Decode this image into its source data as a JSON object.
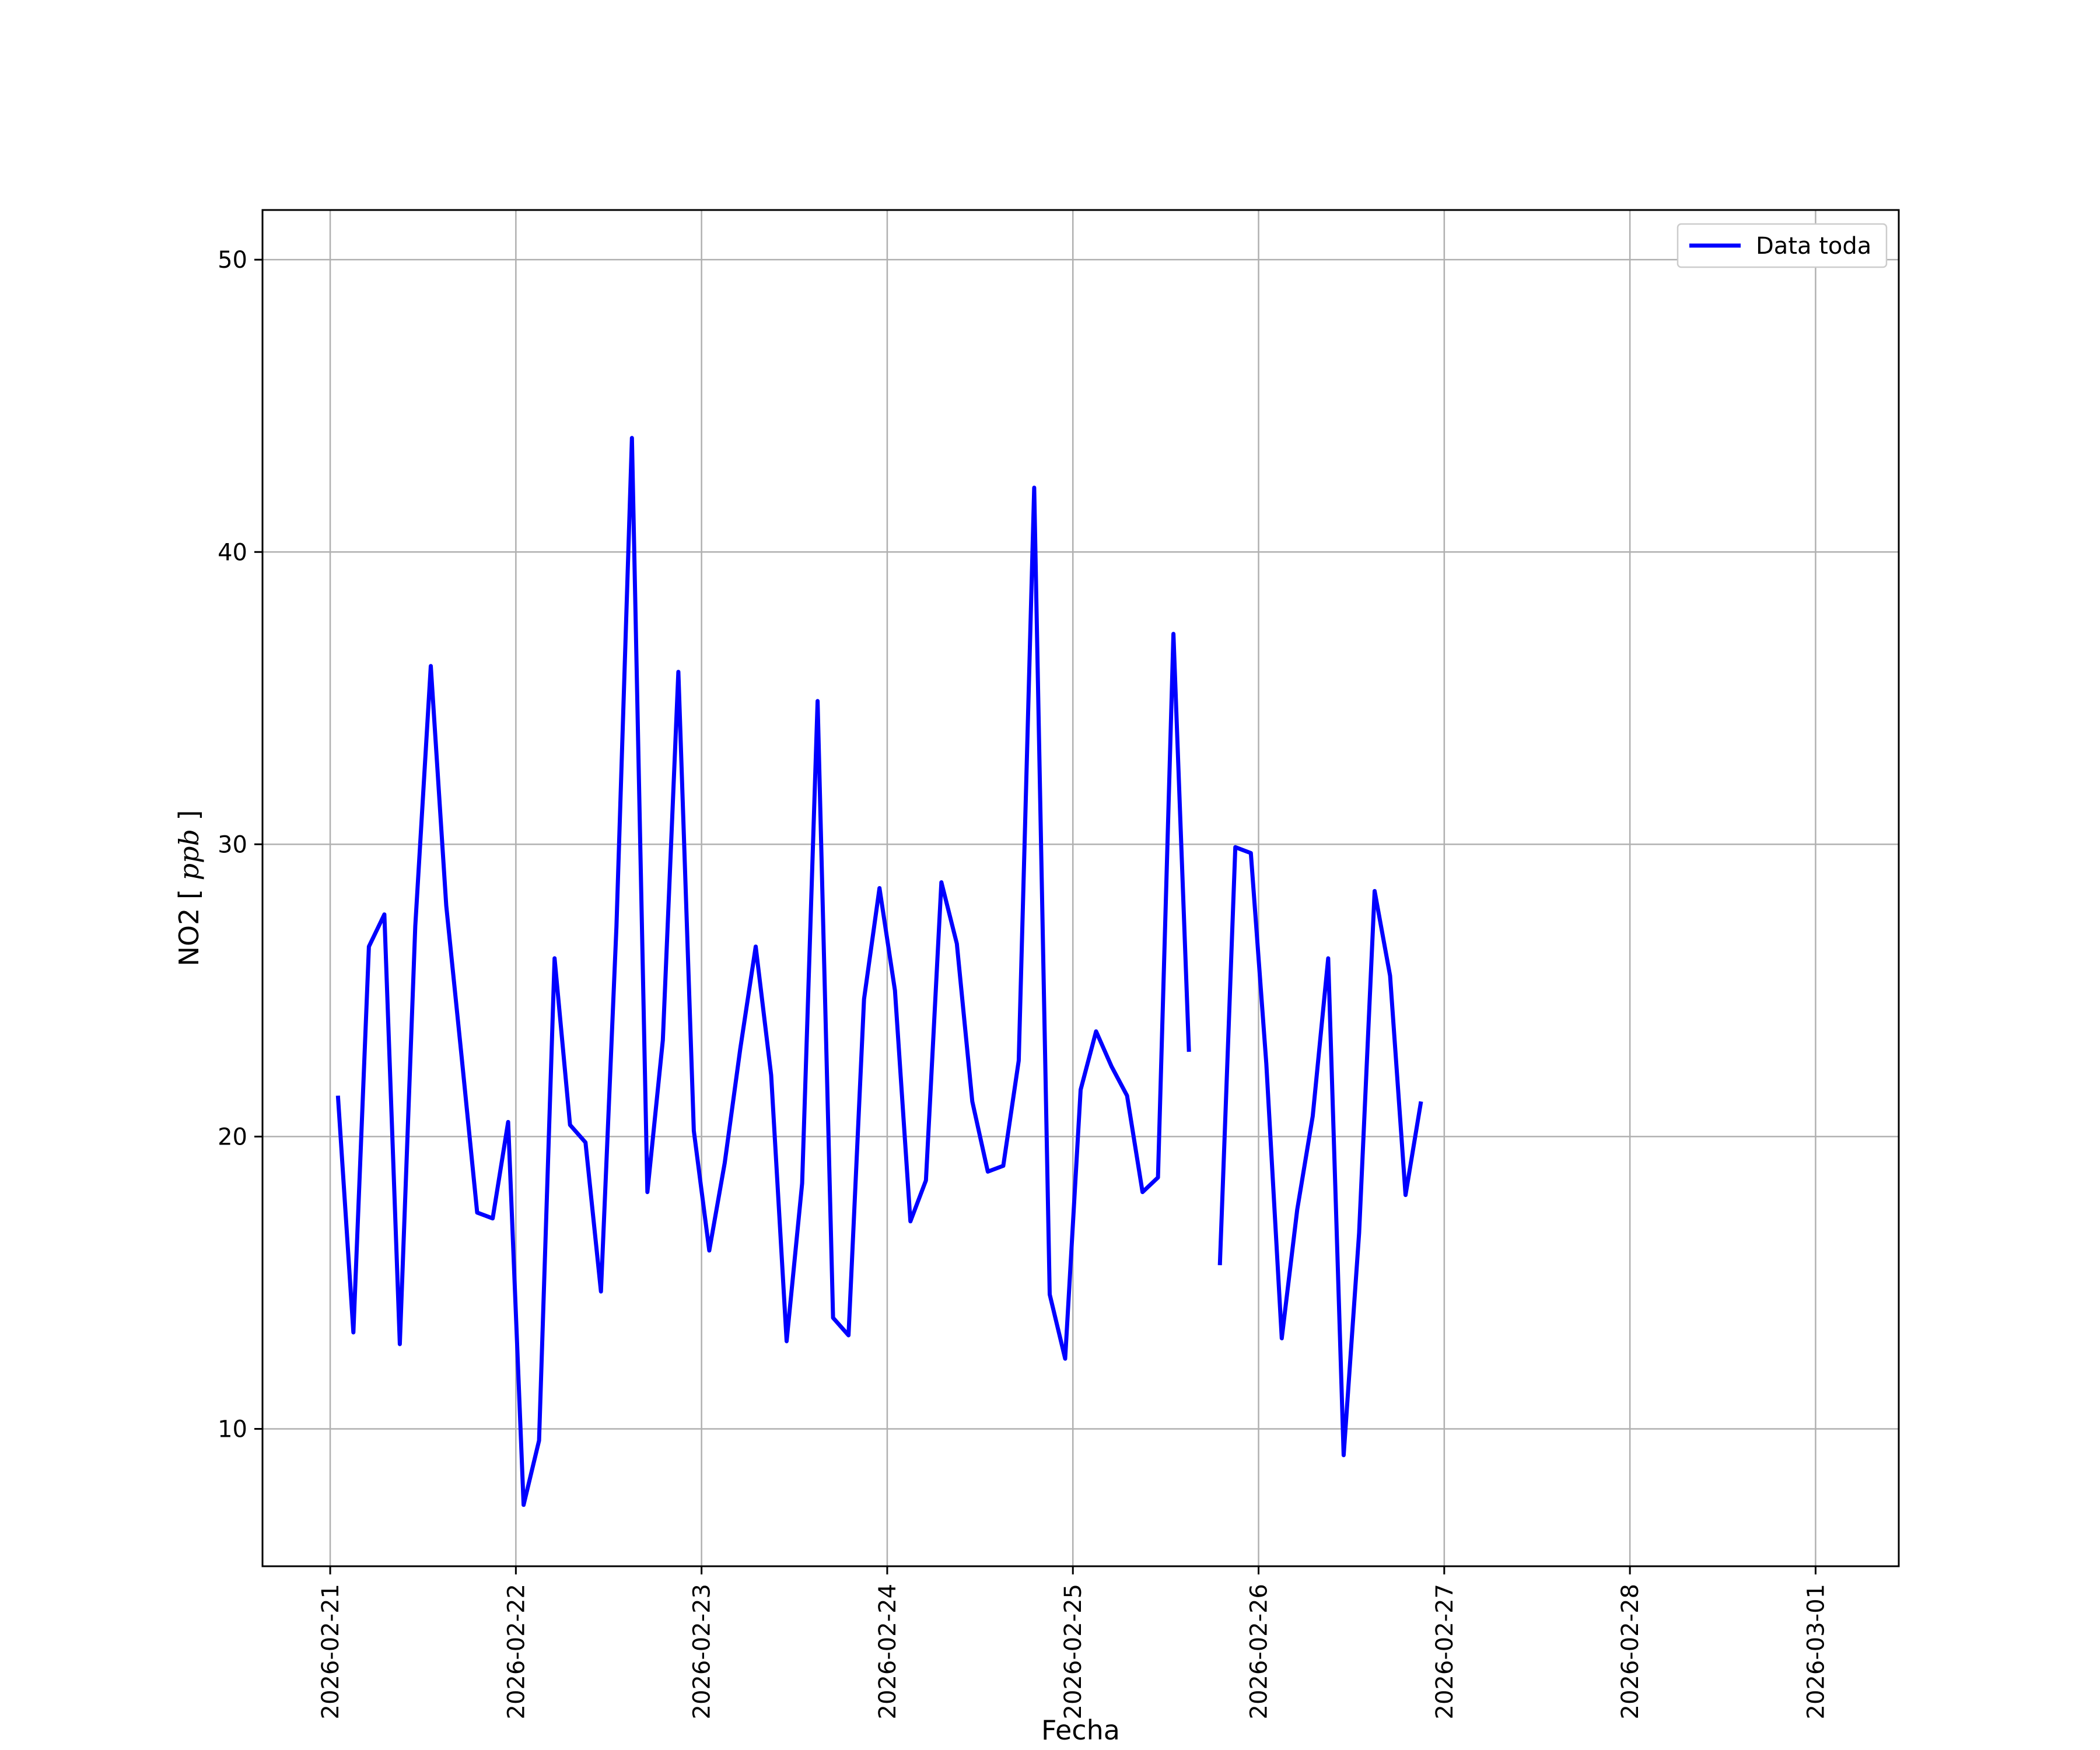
{
  "chart_data": {
    "type": "line",
    "title": "",
    "xlabel": "Fecha",
    "ylabel": "NO2 [ppb]",
    "ylabel_main": "NO2",
    "ylabel_unit": "ppb",
    "xlim": [
      "2026-02-20T15:15",
      "2026-03-01T10:45"
    ],
    "ylim": [
      5.3,
      51.7
    ],
    "grid": true,
    "legend_position": "top-right",
    "x_ticks": [
      "2026-02-21",
      "2026-02-22",
      "2026-02-23",
      "2026-02-24",
      "2026-02-25",
      "2026-02-26",
      "2026-02-27",
      "2026-02-28",
      "2026-03-01"
    ],
    "y_ticks": [
      10,
      20,
      30,
      40,
      50
    ],
    "series": [
      {
        "name": "Data toda",
        "color": "#0000ff",
        "x": [
          "2026-02-21T01:00",
          "2026-02-21T03:00",
          "2026-02-21T05:00",
          "2026-02-21T07:00",
          "2026-02-21T09:00",
          "2026-02-21T11:00",
          "2026-02-21T13:00",
          "2026-02-21T15:00",
          "2026-02-21T17:00",
          "2026-02-21T19:00",
          "2026-02-21T21:00",
          "2026-02-21T23:00",
          "2026-02-22T01:00",
          "2026-02-22T03:00",
          "2026-02-22T05:00",
          "2026-02-22T07:00",
          "2026-02-22T09:00",
          "2026-02-22T11:00",
          "2026-02-22T13:00",
          "2026-02-22T15:00",
          "2026-02-22T17:00",
          "2026-02-22T19:00",
          "2026-02-22T21:00",
          "2026-02-22T23:00",
          "2026-02-23T01:00",
          "2026-02-23T03:00",
          "2026-02-23T05:00",
          "2026-02-23T07:00",
          "2026-02-23T09:00",
          "2026-02-23T11:00",
          "2026-02-23T13:00",
          "2026-02-23T15:00",
          "2026-02-23T17:00",
          "2026-02-23T19:00",
          "2026-02-23T21:00",
          "2026-02-23T23:00",
          "2026-02-24T01:00",
          "2026-02-24T03:00",
          "2026-02-24T05:00",
          "2026-02-24T07:00",
          "2026-02-24T09:00",
          "2026-02-24T11:00",
          "2026-02-24T13:00",
          "2026-02-24T15:00",
          "2026-02-24T17:00",
          "2026-02-24T19:00",
          "2026-02-24T21:00",
          "2026-02-24T23:00",
          "2026-02-25T01:00",
          "2026-02-25T03:00",
          "2026-02-25T05:00",
          "2026-02-25T07:00",
          "2026-02-25T09:00",
          "2026-02-25T11:00",
          "2026-02-25T13:00",
          "2026-02-25T15:00",
          "2026-02-25T17:00",
          "2026-02-25T19:00",
          "2026-02-25T21:00",
          "2026-02-25T23:00",
          "2026-02-26T01:00",
          "2026-02-26T03:00",
          "2026-02-26T05:00",
          "2026-02-26T07:00",
          "2026-02-26T09:00",
          "2026-02-26T11:00",
          "2026-02-26T13:00",
          "2026-02-26T15:00",
          "2026-02-26T17:00",
          "2026-02-26T19:00",
          "2026-02-26T21:00",
          "2026-02-26T23:00",
          "2026-02-27T01:00",
          "2026-02-27T03:00",
          "2026-02-27T05:00",
          "2026-02-27T07:00",
          "2026-02-27T09:00",
          "2026-02-27T11:00",
          "2026-02-27T13:00",
          "2026-02-27T15:00",
          "2026-02-27T17:00",
          "2026-02-27T19:00",
          "2026-02-27T21:00",
          "2026-02-27T23:00",
          "2026-02-28T01:00",
          "2026-02-28T03:00",
          "2026-02-28T05:00",
          "2026-02-28T07:00",
          "2026-02-28T09:00",
          "2026-02-28T11:00",
          "2026-02-28T13:00",
          "2026-02-28T15:00",
          "2026-02-28T17:00",
          "2026-02-28T19:00",
          "2026-02-28T21:00",
          "2026-02-28T23:00",
          "2026-03-01T01:00"
        ],
        "y": [
          21.4,
          13.3,
          26.5,
          27.6,
          12.9,
          27.2,
          36.1,
          27.9,
          22.7,
          17.4,
          17.2,
          20.5,
          7.4,
          9.6,
          26.1,
          20.4,
          19.8,
          14.7,
          27.2,
          43.9,
          18.1,
          23.3,
          35.9,
          20.2,
          16.1,
          19.1,
          23.0,
          26.5,
          22.1,
          13.0,
          18.4,
          34.9,
          13.8,
          13.2,
          24.7,
          28.5,
          25.0,
          17.1,
          18.5,
          28.7,
          26.6,
          21.2,
          18.8,
          19.0,
          22.6,
          42.2,
          14.6,
          12.4,
          21.6,
          23.6,
          22.4,
          21.4,
          18.1,
          18.6,
          37.2,
          22.9,
          null,
          15.6,
          29.9,
          29.7,
          22.5,
          13.1,
          17.5,
          20.7,
          26.1,
          9.1,
          16.7,
          28.4,
          25.5,
          18.0,
          21.2,
          null,
          null,
          null,
          null,
          null,
          null,
          null,
          null,
          null,
          null,
          null,
          null,
          null,
          null,
          null,
          null,
          null,
          null,
          null,
          null,
          null,
          null,
          null,
          null,
          null,
          null
        ]
      }
    ]
  }
}
